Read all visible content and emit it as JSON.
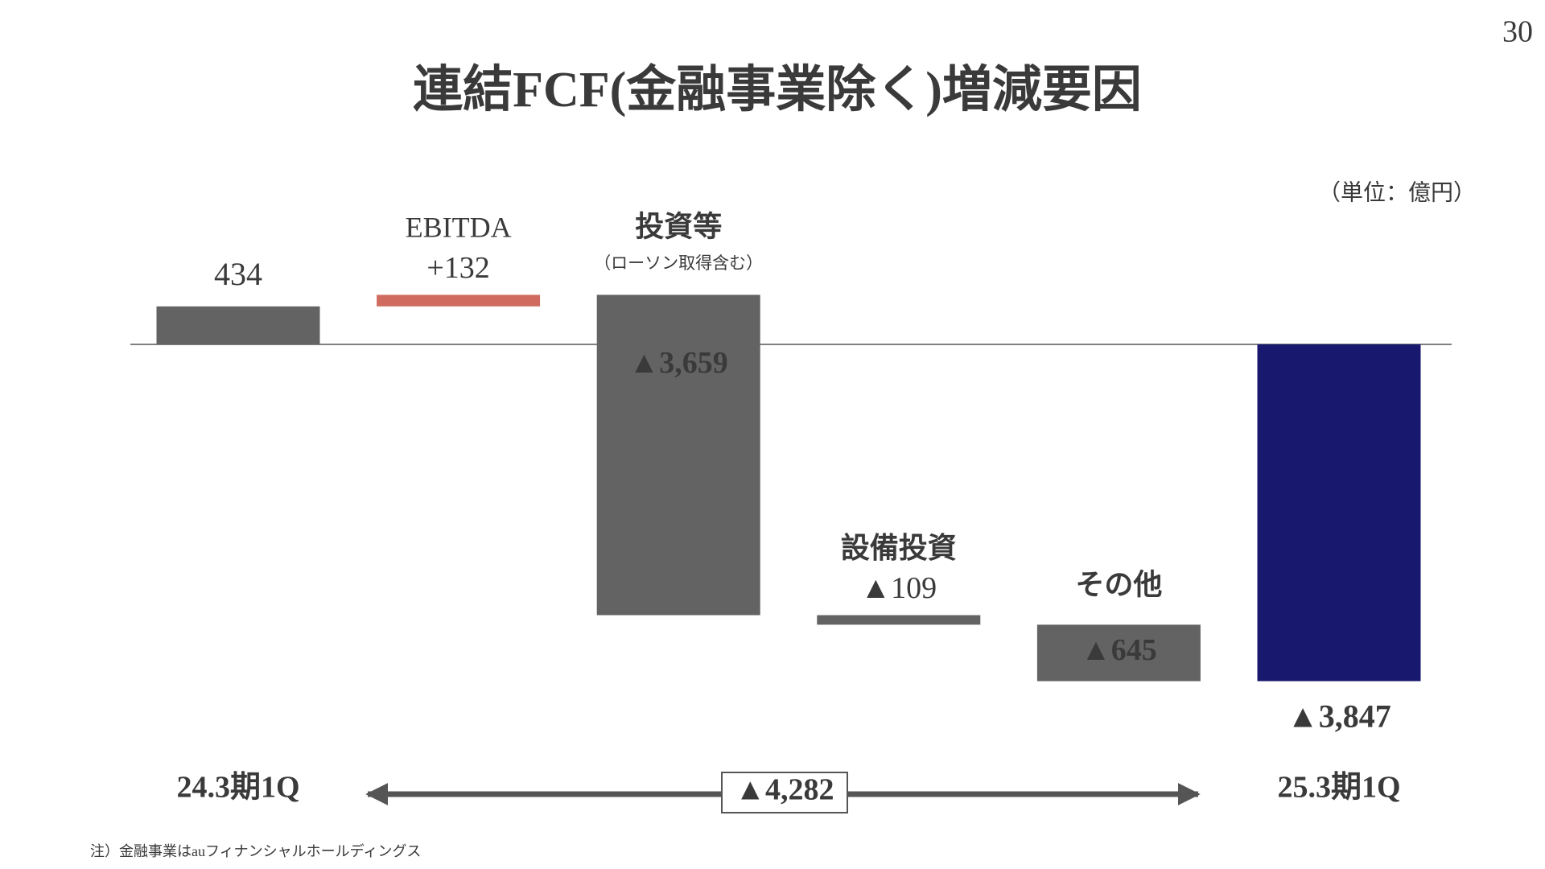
{
  "page_number": "30",
  "footnote": "注）金融事業はauフィナンシャルホールディングス",
  "chart_data": {
    "type": "waterfall",
    "title": "連結FCF(金融事業除く)増減要因",
    "unit": "（単位：億円）",
    "categories": [
      "24.3期1Q",
      "EBITDA",
      "投資等",
      "設備投資",
      "その他",
      "25.3期1Q"
    ],
    "category_notes": [
      null,
      null,
      "（ローソン取得含む）",
      null,
      null,
      null
    ],
    "values": [
      434,
      132,
      -3659,
      -109,
      -645,
      -3847
    ],
    "value_labels": [
      "434",
      "+132",
      "▲3,659",
      "▲109",
      "▲645",
      "▲3,847"
    ],
    "colors": [
      "#636363",
      "#d06b60",
      "#636363",
      "#636363",
      "#636363",
      "#18186e"
    ],
    "annotation": {
      "value": -4282,
      "label": "▲4,282"
    }
  }
}
